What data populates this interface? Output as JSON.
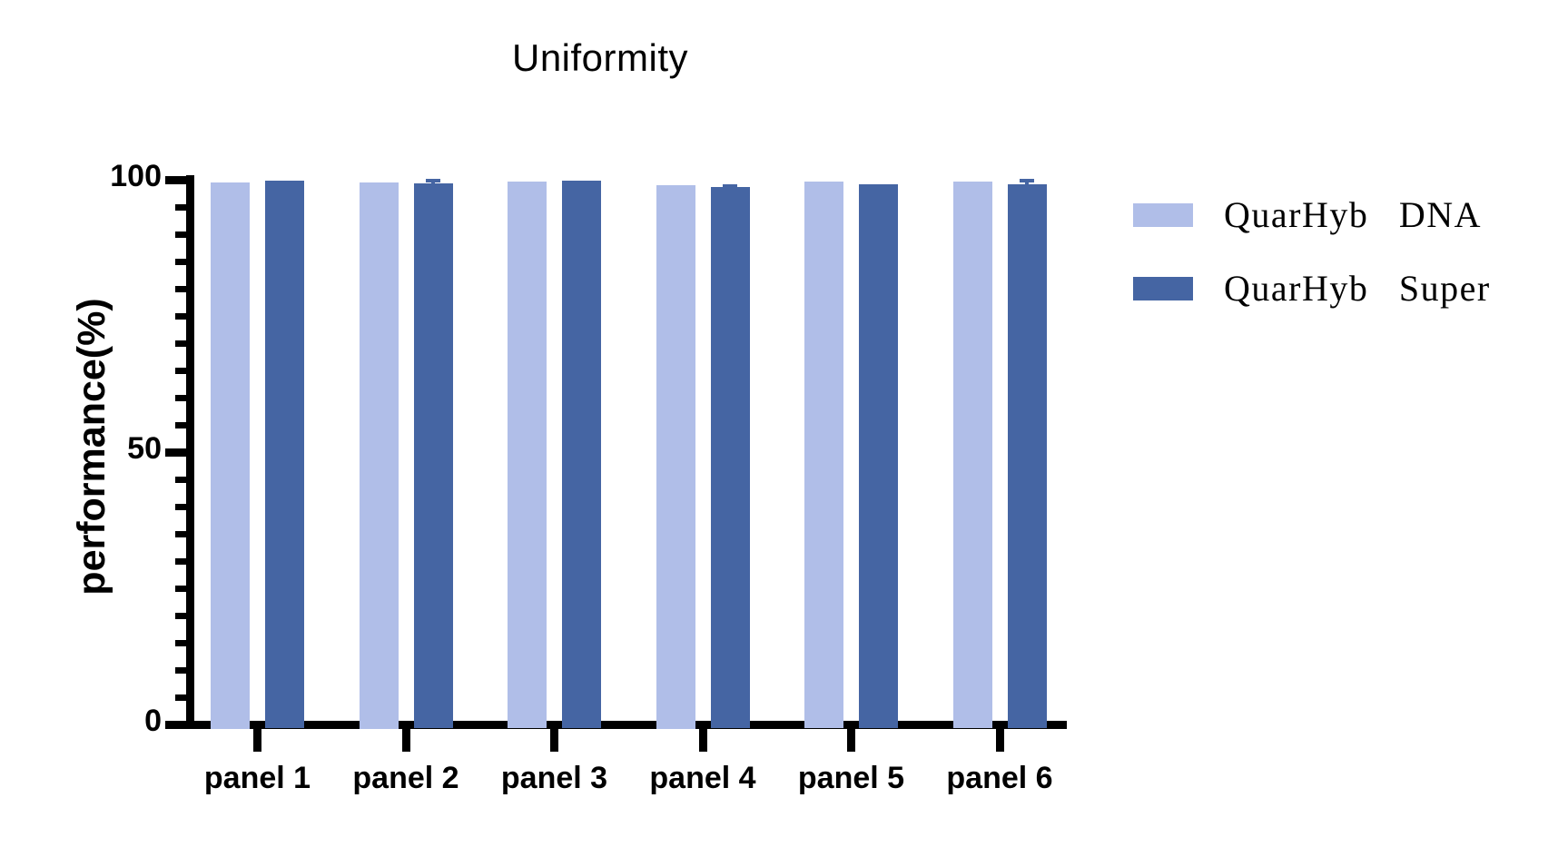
{
  "title": "Uniformity",
  "y_axis_label": "performance(%)",
  "legend": {
    "items": [
      {
        "label": "QuarHyb DNA",
        "color": "#b0bee8"
      },
      {
        "label": "QuarHyb Super",
        "color": "#4565a3"
      }
    ]
  },
  "chart_data": {
    "type": "bar",
    "title": "Uniformity",
    "xlabel": "",
    "ylabel": "performance(%)",
    "categories": [
      "panel 1",
      "panel 2",
      "panel 3",
      "panel 4",
      "panel 5",
      "panel 6"
    ],
    "series": [
      {
        "name": "QuarHyb DNA",
        "color": "#b0bee8",
        "values": [
          99.5,
          99.5,
          99.6,
          99.0,
          99.7,
          99.7
        ],
        "errors": [
          0,
          0,
          0,
          0,
          0,
          0
        ]
      },
      {
        "name": "QuarHyb Super",
        "color": "#4565a3",
        "values": [
          99.8,
          99.3,
          99.8,
          98.7,
          99.2,
          99.2
        ],
        "errors": [
          0,
          0.8,
          0,
          0.5,
          0,
          1.0
        ]
      }
    ],
    "ylim": [
      0,
      100
    ],
    "yticks_major": [
      0,
      50,
      100
    ],
    "ytick_minor_step": 5,
    "grid": false,
    "legend_position": "right",
    "axis_color": "#000000",
    "background": "#ffffff"
  }
}
